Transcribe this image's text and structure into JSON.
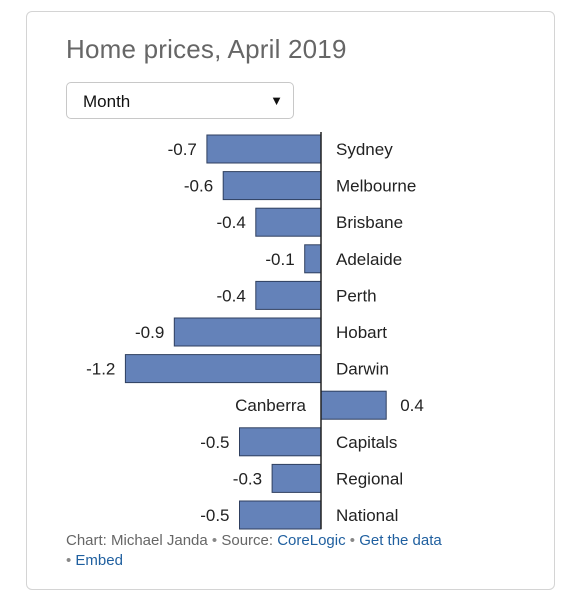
{
  "title": "Home prices, April 2019",
  "period_select": {
    "selected": "Month",
    "arrow": "▼"
  },
  "chart_data": {
    "type": "bar",
    "orientation": "horizontal",
    "categories": [
      "Sydney",
      "Melbourne",
      "Brisbane",
      "Adelaide",
      "Perth",
      "Hobart",
      "Darwin",
      "Canberra",
      "Capitals",
      "Regional",
      "National"
    ],
    "values": [
      -0.7,
      -0.6,
      -0.4,
      -0.1,
      -0.4,
      -0.9,
      -1.2,
      0.4,
      -0.5,
      -0.3,
      -0.5
    ],
    "value_labels": [
      "-0.7",
      "-0.6",
      "-0.4",
      "-0.1",
      "-0.4",
      "-0.9",
      "-1.2",
      "0.4",
      "-0.5",
      "-0.3",
      "-0.5"
    ],
    "bar_color": "#6482b9",
    "bar_stroke": "#2f3f5f",
    "axis_color": "#222222",
    "xlim": [
      -1.2,
      0.4
    ],
    "legend": "none",
    "grid": false
  },
  "footer": {
    "credit": "Chart: Michael Janda",
    "sep1": " • ",
    "source_prefix": "Source: ",
    "source_link": "CoreLogic",
    "sep2": " • ",
    "data_link": "Get the data",
    "sep3": "• ",
    "embed_link": "Embed"
  }
}
